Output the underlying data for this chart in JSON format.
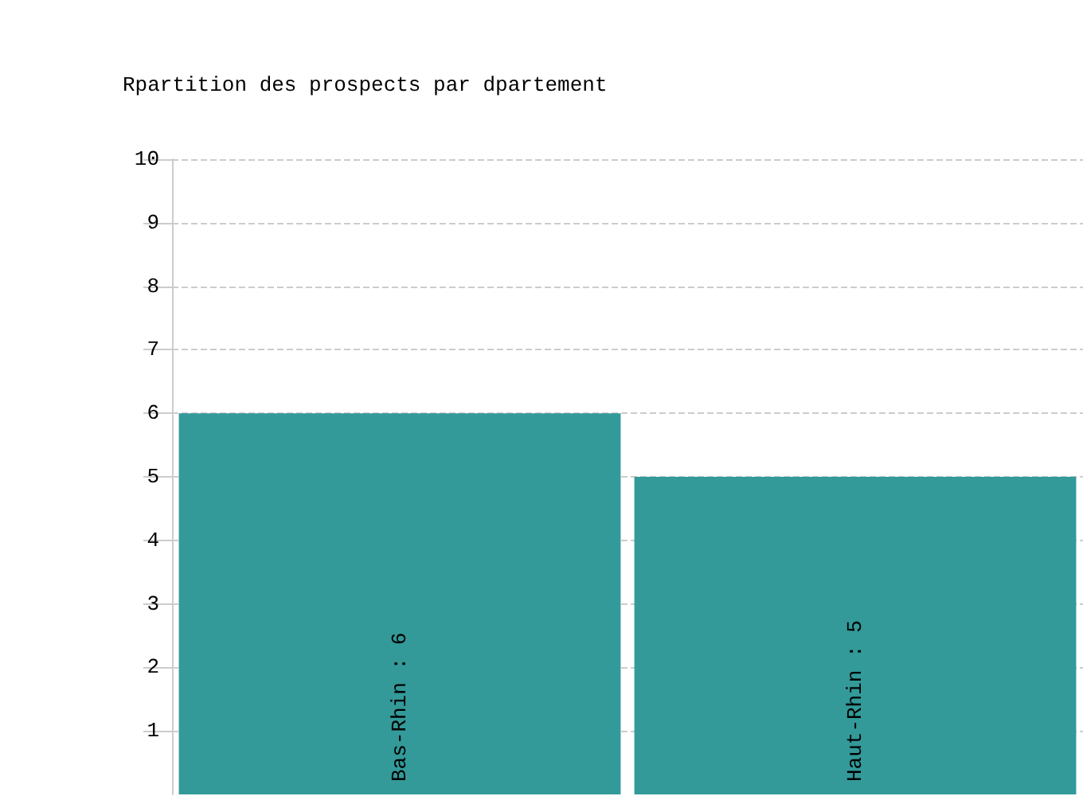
{
  "chart_data": {
    "type": "bar",
    "title": "Rpartition des prospects par dpartement",
    "categories": [
      null,
      null
    ],
    "values": [
      6,
      5
    ],
    "value_labels": [
      "Bas-Rhin : 6",
      "Haut-Rhin : 5"
    ],
    "color": "#339999",
    "ylim": [
      0,
      10
    ],
    "yticks": [
      1,
      2,
      3,
      4,
      5,
      6,
      7,
      8,
      9,
      10
    ],
    "grid": "y",
    "tick_labels": "y"
  }
}
